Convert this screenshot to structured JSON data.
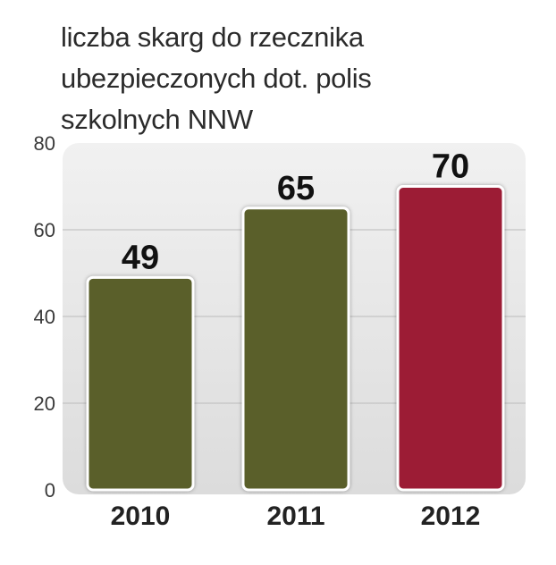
{
  "chart_data": {
    "type": "bar",
    "title_lines": [
      "liczba skarg do rzecznika",
      "ubezpieczonych dot. polis",
      "szkolnych NNW"
    ],
    "categories": [
      "2010",
      "2011",
      "2012"
    ],
    "values": [
      49,
      65,
      70
    ],
    "data_labels": [
      "49",
      "65",
      "70"
    ],
    "colors": [
      "#5a5e2c",
      "#5a5e2c",
      "#9c1c35"
    ],
    "ylim": [
      0,
      80
    ],
    "yticks": [
      "0",
      "20",
      "40",
      "60",
      "80"
    ],
    "grid": true,
    "xlabel": "",
    "ylabel": ""
  }
}
